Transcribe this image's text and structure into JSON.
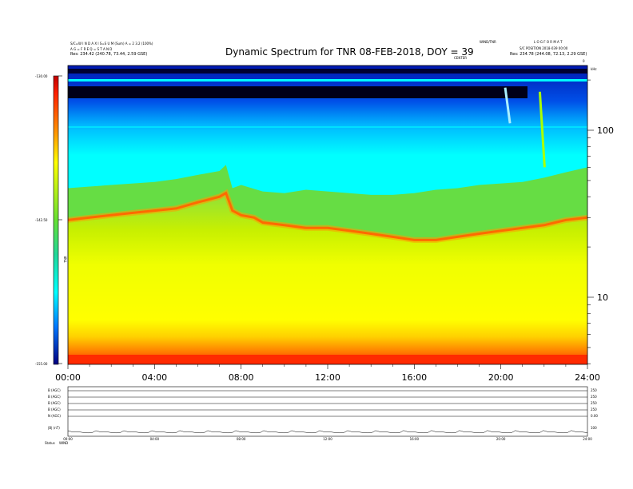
{
  "header": {
    "title": "Dynamic Spectrum for TNR 08-FEB-2018, DOY = 39",
    "left_lines": [
      "S/C=W I N D  A X I S=S U M  (Sum)  A = 2 3.2 (100%)",
      "A G =  F R E Q  =  S T A N D",
      "Res:  234.42 (240.78, 73.44, 2.59 GSE)"
    ],
    "right_lines": [
      "L O G  F O R M A T",
      "S/C POSITION  2018-039 00:00",
      "Res:  234.78 (244.08, 72.13, 2.29 GSE)"
    ],
    "top_center_small": "WIND/TNR",
    "under_title_small": "CENTER",
    "right_axis_unit": "kHz",
    "right_top_tick": "0"
  },
  "colorbar": {
    "labels": [
      "-130.00",
      "-142.50",
      "-155.00"
    ],
    "unit": "TNR"
  },
  "chart_data": {
    "type": "heatmap",
    "title": "Dynamic Spectrum for TNR 08-FEB-2018, DOY = 39",
    "x": {
      "ticks": [
        "00:00",
        "04:00",
        "08:00",
        "12:00",
        "16:00",
        "20:00",
        "24:00"
      ],
      "range_hours": [
        0,
        24
      ]
    },
    "y": {
      "scale": "log",
      "tick_labels": [
        "100",
        "10"
      ],
      "tick_values": [
        100,
        10
      ],
      "unit": "kHz"
    },
    "z": {
      "range": [
        -155.0,
        -130.0
      ],
      "colormap": "rainbow"
    },
    "upper_boundary": {
      "hours": [
        0,
        1,
        2,
        3,
        4,
        5,
        6,
        7,
        7.3,
        7.6,
        8,
        9,
        10,
        11,
        12,
        13,
        14,
        15,
        16,
        17,
        18,
        19,
        20,
        21,
        22,
        23,
        24
      ],
      "kHz": [
        45,
        46,
        47,
        48,
        49,
        51,
        54,
        57,
        62,
        45,
        47,
        43,
        42,
        44,
        43,
        42,
        41,
        41,
        42,
        44,
        45,
        47,
        48,
        49,
        52,
        56,
        60
      ]
    },
    "plasma_line": {
      "hours": [
        0,
        1,
        2,
        3,
        4,
        5,
        6,
        7,
        7.3,
        7.6,
        8,
        8.6,
        9,
        10,
        11,
        12,
        13,
        14,
        15,
        16,
        17,
        18,
        19,
        20,
        21,
        22,
        23,
        24
      ],
      "kHz": [
        29,
        30,
        31,
        32,
        33,
        34,
        37,
        40,
        42,
        33,
        31,
        30,
        28,
        27,
        26,
        26,
        25,
        24,
        23,
        22,
        22,
        23,
        24,
        25,
        26,
        27,
        29,
        30
      ]
    },
    "bursts": [
      {
        "hours": 20.2,
        "kHz_top": 180,
        "kHz_bottom": 110
      },
      {
        "hours": 21.8,
        "kHz_top": 170,
        "kHz_bottom": 60
      }
    ]
  },
  "bottom_panel": {
    "row_labels": [
      "B (AGC)",
      "B (AGC)",
      "B (AGC)",
      "B (AGC)",
      "N (AGC)",
      "|B| (nT)"
    ],
    "right_values": [
      "250",
      "250",
      "250",
      "250",
      "0.00",
      "100"
    ],
    "time_ticks": [
      "00:00",
      "04:00",
      "08:00",
      "12:00",
      "16:00",
      "20:00",
      "24:00"
    ],
    "footer_left": "Status",
    "footer_right": "WIND"
  }
}
